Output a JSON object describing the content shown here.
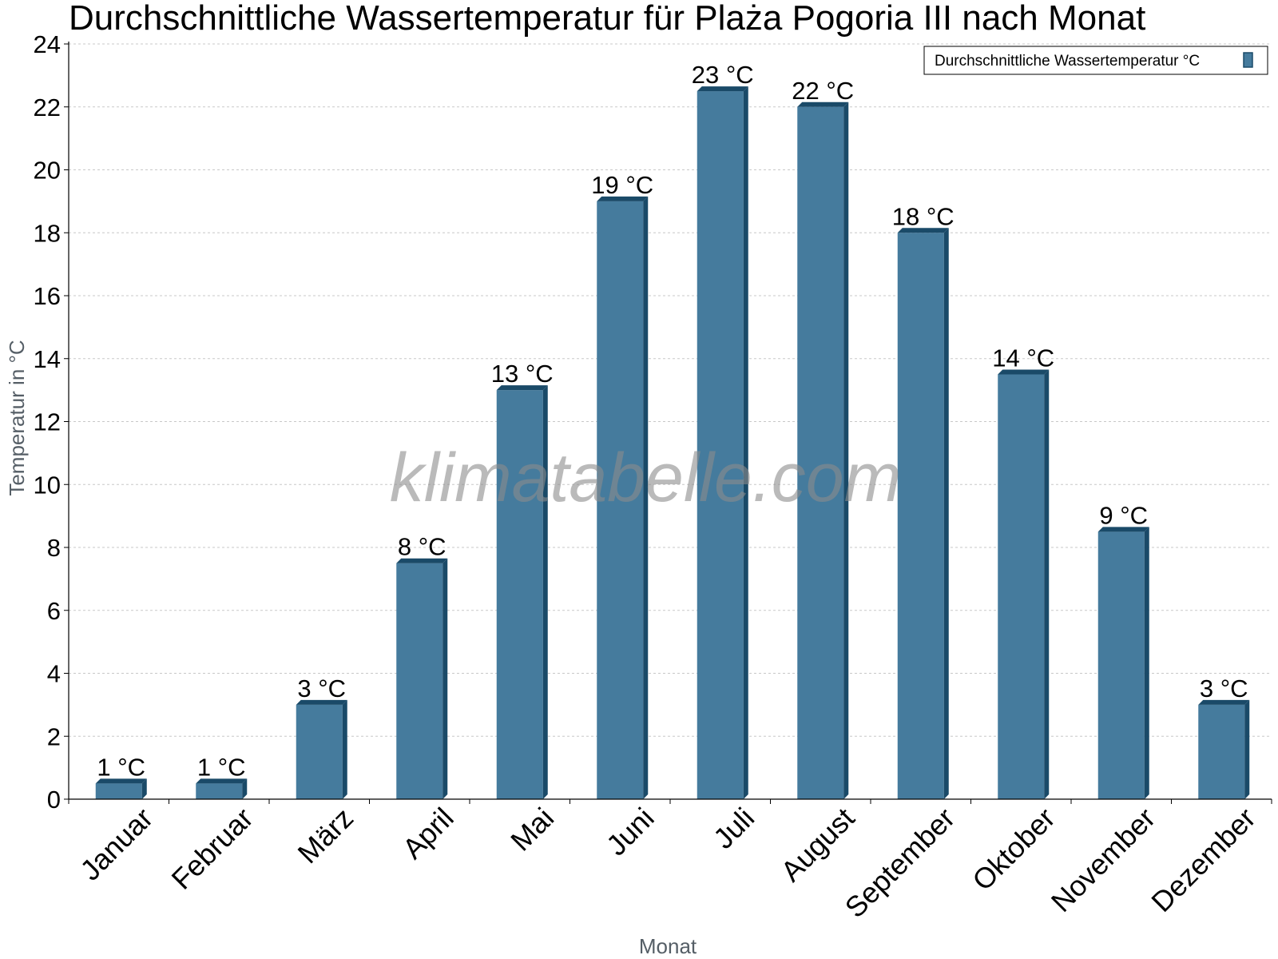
{
  "chart_data": {
    "type": "bar",
    "title": "Durchschnittliche Wassertemperatur für Plaża Pogoria III nach Monat",
    "xlabel": "Monat",
    "ylabel": "Temperatur in °C",
    "categories": [
      "Januar",
      "Februar",
      "März",
      "April",
      "Mai",
      "Juni",
      "Juli",
      "August",
      "September",
      "Oktober",
      "November",
      "Dezember"
    ],
    "series": [
      {
        "name": "Durchschnittliche Wassertemperatur °C",
        "values": [
          0.5,
          0.5,
          3,
          7.5,
          13,
          19,
          22.5,
          22,
          18,
          13.5,
          8.5,
          3
        ],
        "labels": [
          "1 °C",
          "1 °C",
          "3 °C",
          "8 °C",
          "13 °C",
          "19 °C",
          "23 °C",
          "22 °C",
          "18 °C",
          "14 °C",
          "9 °C",
          "3 °C"
        ],
        "color": "#457b9d"
      }
    ],
    "ylim": [
      0,
      24
    ],
    "yticks": [
      "0",
      "2",
      "4",
      "6",
      "8",
      "10",
      "12",
      "14",
      "16",
      "18",
      "20",
      "22",
      "24"
    ],
    "grid": true,
    "legend_position": "top-right",
    "colors": {
      "bar": "#457b9d",
      "bar_side": "#1a4a68",
      "bar_top": "#1a4a68",
      "grid": "#c8c8c8",
      "axis": "#000000"
    }
  },
  "watermark": "klimatabelle.com"
}
